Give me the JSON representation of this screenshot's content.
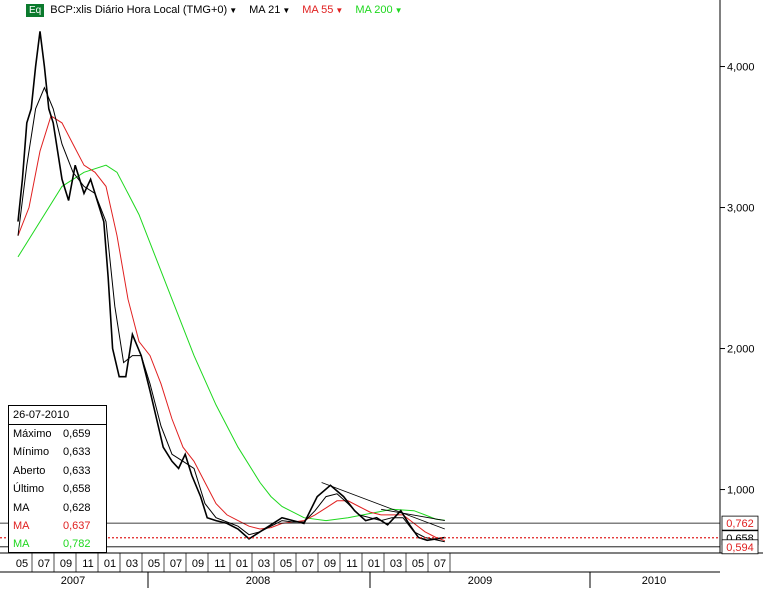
{
  "header": {
    "badge": "Eq",
    "symbol": "BCP:xlis Diário Hora Local (TMG+0)",
    "ma21": "MA 21",
    "ma55": "MA 55",
    "ma200": "MA 200"
  },
  "colors": {
    "price": "#000000",
    "ma21": "#000000",
    "ma55": "#e02020",
    "ma200": "#1ed81e",
    "down_candle": "#b00000"
  },
  "infobox": {
    "date": "26-07-2010",
    "rows": [
      {
        "label": "Máximo",
        "value": "0,659",
        "color": "#000000"
      },
      {
        "label": "Mínimo",
        "value": "0,633",
        "color": "#000000"
      },
      {
        "label": "Aberto",
        "value": "0,633",
        "color": "#000000"
      },
      {
        "label": "Último",
        "value": "0,658",
        "color": "#000000"
      },
      {
        "label": "MA",
        "value": "0,628",
        "color": "#000000"
      },
      {
        "label": "MA",
        "value": "0,637",
        "color": "#e02020"
      },
      {
        "label": "MA",
        "value": "0,782",
        "color": "#1ed81e"
      }
    ]
  },
  "chart_data": {
    "type": "line",
    "xlabel": "",
    "ylabel": "",
    "ylim": [
      0.55,
      4.33
    ],
    "y_ticks": [
      {
        "v": 4.0,
        "label": "4,000"
      },
      {
        "v": 3.0,
        "label": "3,000"
      },
      {
        "v": 2.0,
        "label": "2,000"
      },
      {
        "v": 1.0,
        "label": "1,000"
      }
    ],
    "x_months": [
      "05",
      "07",
      "09",
      "11",
      "01",
      "03",
      "05",
      "07",
      "09",
      "11",
      "01",
      "03",
      "05",
      "07",
      "09",
      "11",
      "01",
      "03",
      "05",
      "07"
    ],
    "x_years": [
      "2007",
      "2008",
      "2009",
      "2010"
    ],
    "series": [
      {
        "name": "Último",
        "key": "price",
        "points": [
          [
            0.0,
            2.9
          ],
          [
            0.2,
            3.2
          ],
          [
            0.4,
            3.6
          ],
          [
            0.6,
            3.7
          ],
          [
            0.8,
            4.0
          ],
          [
            1.0,
            4.25
          ],
          [
            1.2,
            4.0
          ],
          [
            1.4,
            3.7
          ],
          [
            1.6,
            3.6
          ],
          [
            1.8,
            3.4
          ],
          [
            2.0,
            3.2
          ],
          [
            2.3,
            3.05
          ],
          [
            2.6,
            3.3
          ],
          [
            3.0,
            3.1
          ],
          [
            3.3,
            3.2
          ],
          [
            3.6,
            3.05
          ],
          [
            3.9,
            2.9
          ],
          [
            4.1,
            2.5
          ],
          [
            4.3,
            2.0
          ],
          [
            4.6,
            1.8
          ],
          [
            4.9,
            1.8
          ],
          [
            5.2,
            2.1
          ],
          [
            5.6,
            1.95
          ],
          [
            6.0,
            1.7
          ],
          [
            6.3,
            1.5
          ],
          [
            6.6,
            1.3
          ],
          [
            7.0,
            1.2
          ],
          [
            7.3,
            1.15
          ],
          [
            7.6,
            1.25
          ],
          [
            7.9,
            1.1
          ],
          [
            8.3,
            0.95
          ],
          [
            8.6,
            0.8
          ],
          [
            9.0,
            0.78
          ],
          [
            9.5,
            0.76
          ],
          [
            10.0,
            0.72
          ],
          [
            10.5,
            0.65
          ],
          [
            11.0,
            0.7
          ],
          [
            11.5,
            0.75
          ],
          [
            12.0,
            0.8
          ],
          [
            12.5,
            0.78
          ],
          [
            13.0,
            0.76
          ],
          [
            13.6,
            0.95
          ],
          [
            14.2,
            1.03
          ],
          [
            14.8,
            0.95
          ],
          [
            15.3,
            0.85
          ],
          [
            15.8,
            0.78
          ],
          [
            16.3,
            0.8
          ],
          [
            16.8,
            0.75
          ],
          [
            17.4,
            0.85
          ],
          [
            17.8,
            0.75
          ],
          [
            18.2,
            0.66
          ],
          [
            18.6,
            0.64
          ],
          [
            19.0,
            0.65
          ],
          [
            19.4,
            0.66
          ]
        ]
      },
      {
        "name": "MA 21",
        "key": "ma21",
        "points": [
          [
            0.0,
            2.8
          ],
          [
            0.4,
            3.3
          ],
          [
            0.8,
            3.7
          ],
          [
            1.2,
            3.85
          ],
          [
            1.6,
            3.7
          ],
          [
            2.0,
            3.45
          ],
          [
            2.5,
            3.25
          ],
          [
            3.0,
            3.15
          ],
          [
            3.5,
            3.1
          ],
          [
            4.0,
            2.9
          ],
          [
            4.4,
            2.3
          ],
          [
            4.8,
            1.9
          ],
          [
            5.2,
            1.95
          ],
          [
            5.6,
            1.95
          ],
          [
            6.0,
            1.75
          ],
          [
            6.5,
            1.45
          ],
          [
            7.0,
            1.25
          ],
          [
            7.5,
            1.2
          ],
          [
            8.0,
            1.15
          ],
          [
            8.5,
            0.9
          ],
          [
            9.0,
            0.8
          ],
          [
            9.5,
            0.77
          ],
          [
            10.0,
            0.74
          ],
          [
            10.5,
            0.68
          ],
          [
            11.0,
            0.7
          ],
          [
            11.5,
            0.74
          ],
          [
            12.0,
            0.78
          ],
          [
            12.5,
            0.77
          ],
          [
            13.0,
            0.77
          ],
          [
            13.5,
            0.85
          ],
          [
            14.0,
            0.95
          ],
          [
            14.5,
            0.97
          ],
          [
            15.0,
            0.9
          ],
          [
            15.5,
            0.82
          ],
          [
            16.0,
            0.8
          ],
          [
            16.5,
            0.78
          ],
          [
            17.0,
            0.8
          ],
          [
            17.5,
            0.8
          ],
          [
            18.0,
            0.7
          ],
          [
            18.5,
            0.66
          ],
          [
            19.4,
            0.63
          ]
        ]
      },
      {
        "name": "MA 55",
        "key": "ma55",
        "points": [
          [
            0.0,
            2.8
          ],
          [
            0.5,
            3.0
          ],
          [
            1.0,
            3.4
          ],
          [
            1.5,
            3.65
          ],
          [
            2.0,
            3.6
          ],
          [
            2.5,
            3.45
          ],
          [
            3.0,
            3.3
          ],
          [
            3.5,
            3.25
          ],
          [
            4.0,
            3.15
          ],
          [
            4.5,
            2.8
          ],
          [
            5.0,
            2.35
          ],
          [
            5.5,
            2.05
          ],
          [
            6.0,
            1.95
          ],
          [
            6.5,
            1.75
          ],
          [
            7.0,
            1.5
          ],
          [
            7.5,
            1.3
          ],
          [
            8.0,
            1.2
          ],
          [
            8.5,
            1.05
          ],
          [
            9.0,
            0.9
          ],
          [
            9.5,
            0.82
          ],
          [
            10.0,
            0.78
          ],
          [
            10.5,
            0.74
          ],
          [
            11.0,
            0.72
          ],
          [
            11.5,
            0.73
          ],
          [
            12.0,
            0.76
          ],
          [
            12.5,
            0.77
          ],
          [
            13.0,
            0.78
          ],
          [
            13.5,
            0.82
          ],
          [
            14.0,
            0.87
          ],
          [
            14.5,
            0.92
          ],
          [
            15.0,
            0.92
          ],
          [
            15.5,
            0.88
          ],
          [
            16.0,
            0.84
          ],
          [
            16.5,
            0.82
          ],
          [
            17.0,
            0.82
          ],
          [
            17.5,
            0.82
          ],
          [
            18.0,
            0.76
          ],
          [
            18.5,
            0.7
          ],
          [
            19.0,
            0.66
          ],
          [
            19.4,
            0.637
          ]
        ]
      },
      {
        "name": "MA 200",
        "key": "ma200",
        "points": [
          [
            0.0,
            2.65
          ],
          [
            1.0,
            2.9
          ],
          [
            2.0,
            3.15
          ],
          [
            3.0,
            3.25
          ],
          [
            4.0,
            3.3
          ],
          [
            4.5,
            3.25
          ],
          [
            5.0,
            3.1
          ],
          [
            5.5,
            2.95
          ],
          [
            6.0,
            2.75
          ],
          [
            7.0,
            2.35
          ],
          [
            8.0,
            1.95
          ],
          [
            9.0,
            1.6
          ],
          [
            10.0,
            1.3
          ],
          [
            11.0,
            1.05
          ],
          [
            11.5,
            0.95
          ],
          [
            12.0,
            0.88
          ],
          [
            12.5,
            0.84
          ],
          [
            13.0,
            0.8
          ],
          [
            14.0,
            0.78
          ],
          [
            15.0,
            0.8
          ],
          [
            16.0,
            0.83
          ],
          [
            17.0,
            0.86
          ],
          [
            18.0,
            0.85
          ],
          [
            18.5,
            0.82
          ],
          [
            19.0,
            0.79
          ],
          [
            19.4,
            0.782
          ]
        ]
      }
    ],
    "levels": [
      {
        "v": 0.762,
        "label": "0,762",
        "color": "#e02020",
        "style": "solid-black"
      },
      {
        "v": 0.658,
        "label": "0,658",
        "color": "#000000",
        "style": "dotted-red"
      },
      {
        "v": 0.594,
        "label": "0,594",
        "color": "#e02020",
        "style": "solid-black"
      }
    ],
    "trend_lines": [
      [
        [
          13.8,
          1.05
        ],
        [
          19.4,
          0.72
        ]
      ],
      [
        [
          16.5,
          0.86
        ],
        [
          19.4,
          0.78
        ]
      ]
    ]
  }
}
